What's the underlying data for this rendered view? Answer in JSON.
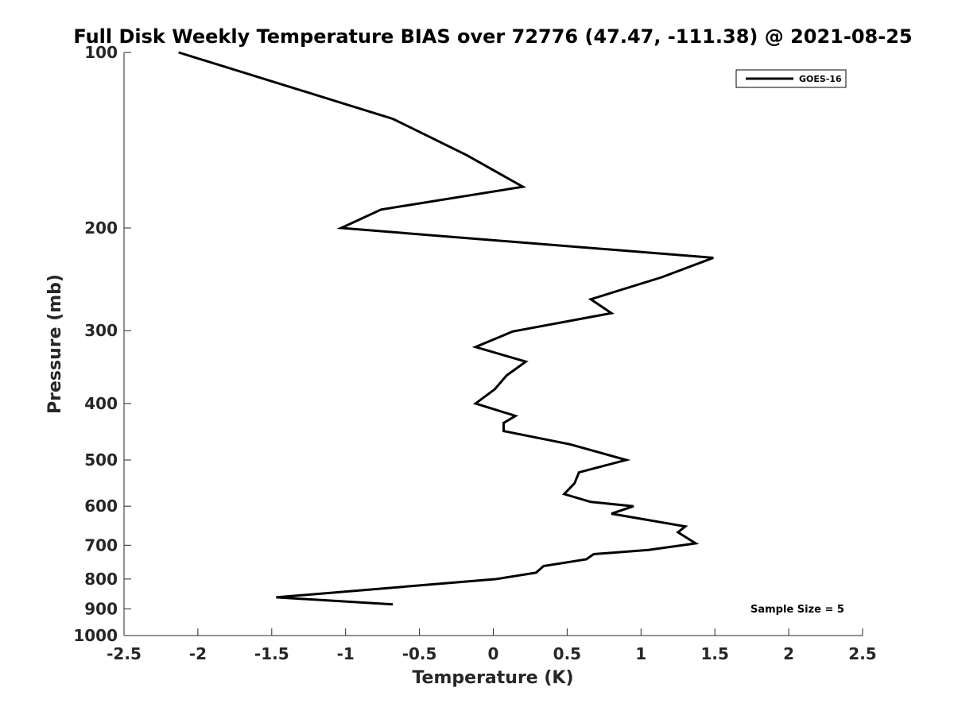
{
  "chart_data": {
    "type": "line",
    "title": "Full Disk Weekly Temperature BIAS over 72776 (47.47, -111.38) @ 2021-08-25",
    "xlabel": "Temperature (K)",
    "ylabel": "Pressure (mb)",
    "xlim": [
      -2.5,
      2.5
    ],
    "ylim": [
      1000,
      100
    ],
    "y_scale": "log",
    "y_reversed": true,
    "grid": false,
    "legend_position": "top-right",
    "x_ticks": [
      -2.5,
      -2,
      -1.5,
      -1,
      -0.5,
      0,
      0.5,
      1,
      1.5,
      2,
      2.5
    ],
    "x_tick_labels": [
      "-2.5",
      "-2",
      "-1.5",
      "-1",
      "-0.5",
      "0",
      "0.5",
      "1",
      "1.5",
      "2",
      "2.5"
    ],
    "y_ticks": [
      100,
      200,
      300,
      400,
      500,
      600,
      700,
      800,
      900,
      1000
    ],
    "y_tick_labels": [
      "100",
      "200",
      "300",
      "400",
      "500",
      "600",
      "700",
      "800",
      "900",
      "1000"
    ],
    "line_color": "#000000",
    "series": [
      {
        "name": "GOES-16",
        "x": [
          -2.13,
          -0.68,
          -0.18,
          0.2,
          -0.76,
          -1.03,
          1.49,
          1.14,
          0.66,
          0.8,
          0.13,
          -0.12,
          0.22,
          0.09,
          0.01,
          -0.12,
          0.15,
          0.07,
          0.07,
          0.52,
          0.9,
          0.58,
          0.55,
          0.48,
          0.66,
          0.95,
          0.8,
          1.3,
          1.25,
          1.37,
          1.05,
          0.68,
          0.63,
          0.34,
          0.29,
          0.02,
          -1.47,
          -0.68
        ],
        "y": [
          100,
          130,
          150,
          170,
          186,
          200,
          225,
          243,
          265,
          280,
          301,
          320,
          339,
          358,
          378,
          400,
          420,
          432,
          446,
          470,
          500,
          525,
          548,
          572,
          590,
          600,
          618,
          650,
          665,
          695,
          713,
          725,
          740,
          760,
          780,
          800,
          860,
          884
        ]
      }
    ],
    "annotations": [
      "Sample Size = 5"
    ]
  }
}
